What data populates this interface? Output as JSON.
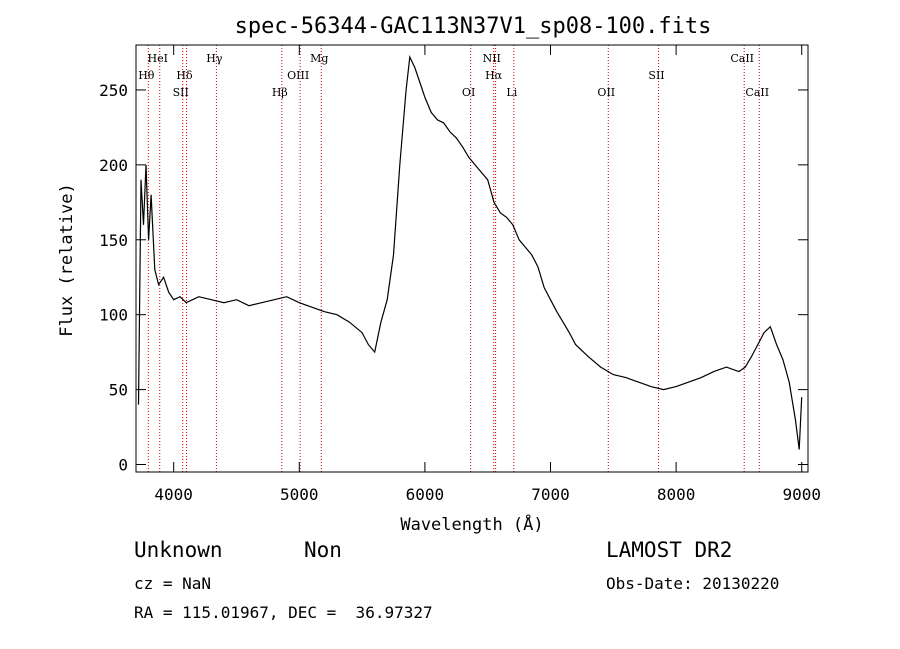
{
  "chart_data": {
    "type": "line",
    "title": "spec-56344-GAC113N37V1_sp08-100.fits",
    "xlabel": "Wavelength (Å)",
    "ylabel": "Flux (relative)",
    "xlim": [
      3700,
      9050
    ],
    "ylim": [
      -5,
      280
    ],
    "xticks": [
      4000,
      5000,
      6000,
      7000,
      8000,
      9000
    ],
    "yticks": [
      0,
      50,
      100,
      150,
      200,
      250
    ],
    "grid": false,
    "line_color": "#000000",
    "marker_color": "#cc0000",
    "series": [
      {
        "x": [
          3720,
          3740,
          3760,
          3780,
          3800,
          3820,
          3850,
          3880,
          3920,
          3960,
          4000,
          4050,
          4100,
          4150,
          4200,
          4300,
          4400,
          4500,
          4600,
          4700,
          4800,
          4900,
          5000,
          5100,
          5200,
          5300,
          5400,
          5500,
          5550,
          5600,
          5650,
          5700,
          5750,
          5800,
          5850,
          5880,
          5920,
          5960,
          6000,
          6050,
          6100,
          6150,
          6200,
          6250,
          6300,
          6350,
          6400,
          6450,
          6500,
          6550,
          6600,
          6650,
          6700,
          6750,
          6800,
          6850,
          6900,
          6950,
          7000,
          7050,
          7100,
          7150,
          7200,
          7300,
          7400,
          7500,
          7600,
          7700,
          7800,
          7900,
          8000,
          8100,
          8200,
          8300,
          8400,
          8500,
          8550,
          8600,
          8650,
          8700,
          8750,
          8800,
          8850,
          8900,
          8950,
          8980,
          9000
        ],
        "y": [
          40,
          190,
          160,
          200,
          150,
          180,
          130,
          120,
          125,
          115,
          110,
          112,
          108,
          110,
          112,
          110,
          108,
          110,
          106,
          108,
          110,
          112,
          108,
          105,
          102,
          100,
          95,
          88,
          80,
          75,
          95,
          110,
          140,
          200,
          250,
          272,
          265,
          255,
          245,
          235,
          230,
          228,
          222,
          218,
          212,
          205,
          200,
          195,
          190,
          175,
          168,
          165,
          160,
          150,
          145,
          140,
          132,
          118,
          110,
          102,
          95,
          88,
          80,
          72,
          65,
          60,
          58,
          55,
          52,
          50,
          52,
          55,
          58,
          62,
          65,
          62,
          65,
          72,
          80,
          88,
          92,
          80,
          70,
          55,
          30,
          10,
          45
        ]
      }
    ],
    "lines": [
      {
        "wavelength": 3798,
        "label": "Hθ",
        "row": 2
      },
      {
        "wavelength": 3889,
        "label": "HeI",
        "row": 1
      },
      {
        "wavelength": 4072,
        "label": "SII",
        "row": 3
      },
      {
        "wavelength": 4102,
        "label": "Hδ",
        "row": 2
      },
      {
        "wavelength": 4340,
        "label": "Hγ",
        "row": 1
      },
      {
        "wavelength": 4861,
        "label": "Hβ",
        "row": 3
      },
      {
        "wavelength": 5007,
        "label": "OIII",
        "row": 2
      },
      {
        "wavelength": 5175,
        "label": "Mg",
        "row": 1
      },
      {
        "wavelength": 6364,
        "label": "OI",
        "row": 3
      },
      {
        "wavelength": 6548,
        "label": "NII",
        "row": 1
      },
      {
        "wavelength": 6563,
        "label": "Hα",
        "row": 2
      },
      {
        "wavelength": 6708,
        "label": "Li",
        "row": 3
      },
      {
        "wavelength": 7460,
        "label": "OII",
        "row": 3
      },
      {
        "wavelength": 7860,
        "label": "SII",
        "row": 2
      },
      {
        "wavelength": 8542,
        "label": "CaII",
        "row": 1
      },
      {
        "wavelength": 8662,
        "label": "CaII",
        "row": 3
      }
    ]
  },
  "footer": {
    "object_class": "Unknown",
    "subclass": "Non",
    "survey": "LAMOST DR2",
    "cz": "cz = NaN",
    "obs_date": "Obs-Date: 20130220",
    "radec": "RA = 115.01967, DEC =  36.97327"
  }
}
